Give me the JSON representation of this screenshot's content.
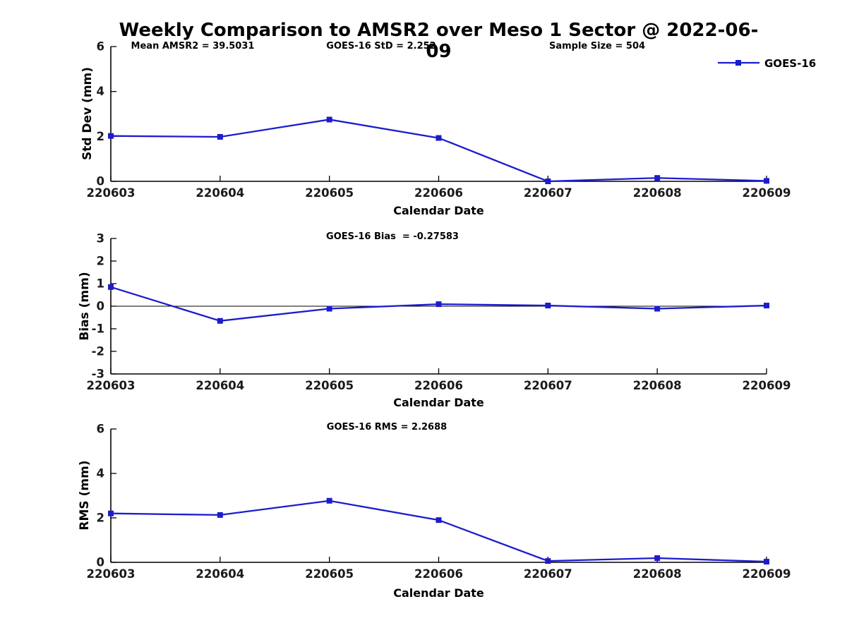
{
  "title": "Weekly Comparison to AMSR2 over Meso 1 Sector @ 2022-06-09",
  "colors": {
    "series": "#1c1ccd",
    "axis": "#000000",
    "text": "#1a1a1a",
    "background": "#ffffff"
  },
  "chart_data": [
    {
      "type": "line",
      "name": "std-dev",
      "ylabel": "Std Dev (mm)",
      "xlabel": "Calendar Date",
      "categories": [
        "220603",
        "220604",
        "220605",
        "220606",
        "220607",
        "220608",
        "220609"
      ],
      "series": [
        {
          "name": "GOES-16",
          "color": "#1c1ccd",
          "marker": "square",
          "values": [
            2.02,
            1.98,
            2.75,
            1.93,
            0.0,
            0.15,
            0.02
          ]
        }
      ],
      "ylim": [
        0,
        6
      ],
      "yticks": [
        0,
        2,
        4,
        6
      ],
      "grid": false,
      "annotations": [
        "Mean AMSR2 = 39.5031",
        "GOES-16 StD = 2.252",
        "Sample Size = 504"
      ],
      "legend": {
        "label": "GOES-16",
        "position": "top-right"
      }
    },
    {
      "type": "line",
      "name": "bias",
      "title": "GOES-16 Bias  = -0.27583",
      "ylabel": "Bias (mm)",
      "xlabel": "Calendar Date",
      "categories": [
        "220603",
        "220604",
        "220605",
        "220606",
        "220607",
        "220608",
        "220609"
      ],
      "series": [
        {
          "name": "GOES-16",
          "color": "#1c1ccd",
          "marker": "square",
          "values": [
            0.85,
            -0.65,
            -0.11,
            0.09,
            0.03,
            -0.11,
            0.03
          ]
        }
      ],
      "ylim": [
        -3,
        3
      ],
      "yticks": [
        -3,
        -2,
        -1,
        0,
        1,
        2,
        3
      ],
      "grid": false,
      "zero_line": true
    },
    {
      "type": "line",
      "name": "rms",
      "title": "GOES-16 RMS = 2.2688",
      "ylabel": "RMS (mm)",
      "xlabel": "Calendar Date",
      "categories": [
        "220603",
        "220604",
        "220605",
        "220606",
        "220607",
        "220608",
        "220609"
      ],
      "series": [
        {
          "name": "GOES-16",
          "color": "#1c1ccd",
          "marker": "square",
          "values": [
            2.2,
            2.13,
            2.77,
            1.9,
            0.06,
            0.19,
            0.03
          ]
        }
      ],
      "ylim": [
        0,
        6
      ],
      "yticks": [
        0,
        2,
        4,
        6
      ],
      "grid": false
    }
  ]
}
